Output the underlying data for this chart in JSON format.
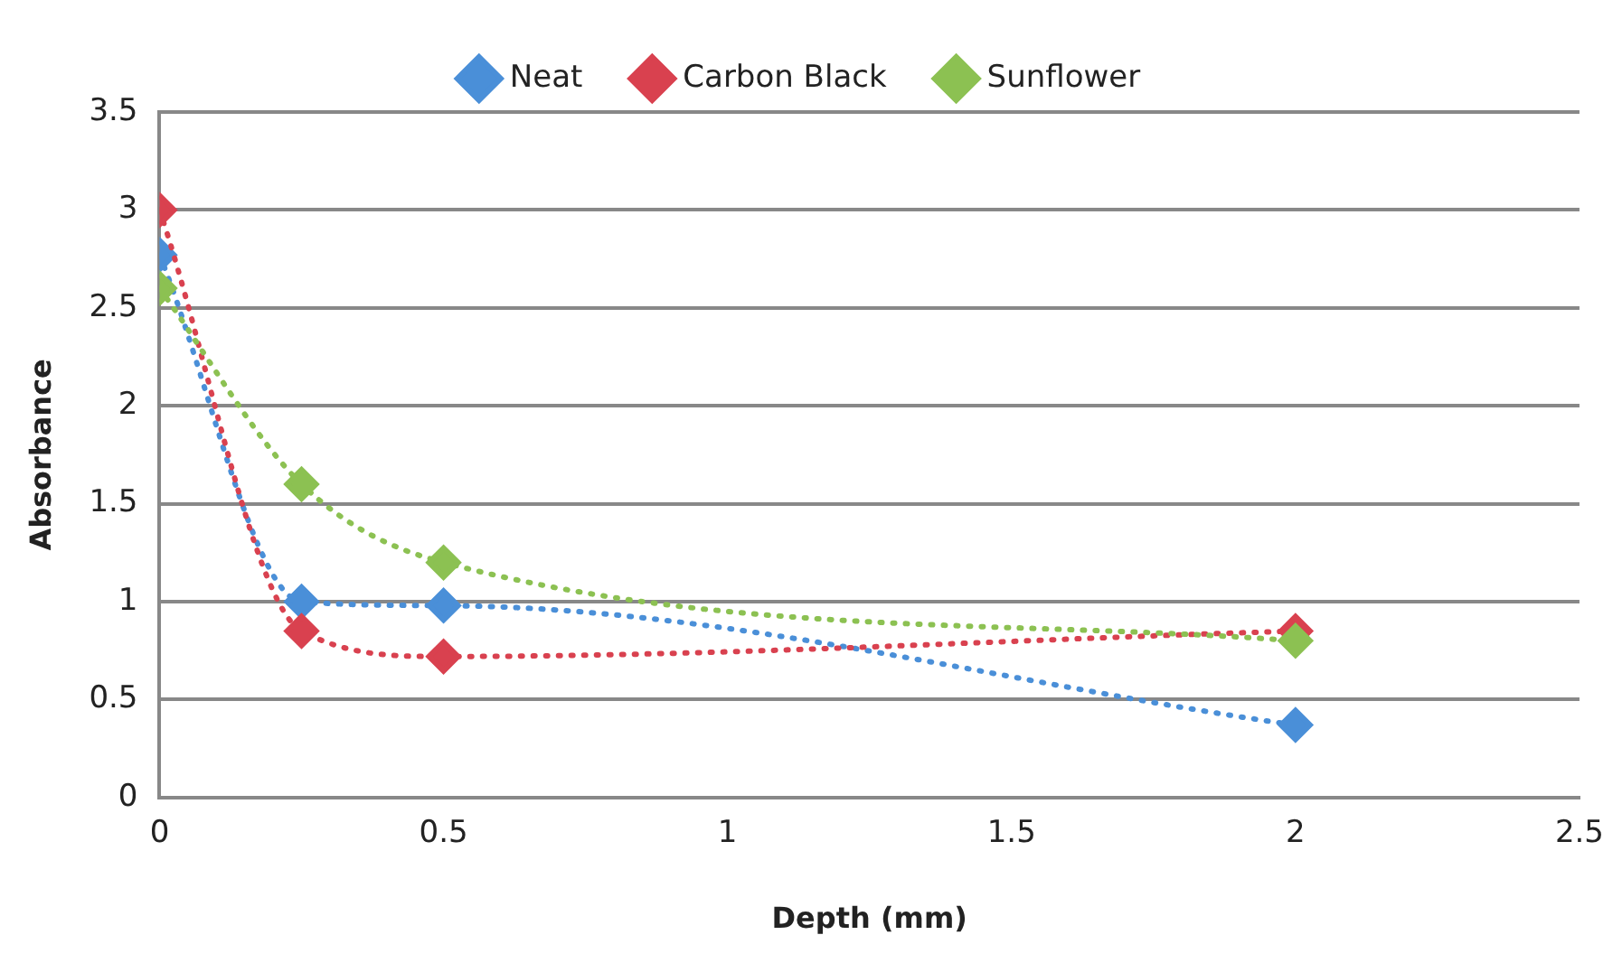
{
  "chart_data": {
    "type": "line",
    "xlabel": "Depth (mm)",
    "ylabel": "Absorbance",
    "x": [
      0,
      0.25,
      0.5,
      2
    ],
    "series": [
      {
        "name": "Neat",
        "color": "#4a8fd8",
        "values": [
          2.77,
          1.0,
          0.98,
          0.37
        ]
      },
      {
        "name": "Carbon Black",
        "color": "#d9414f",
        "values": [
          3.0,
          0.85,
          0.72,
          0.85
        ]
      },
      {
        "name": "Sunflower",
        "color": "#8cc152",
        "values": [
          2.6,
          1.6,
          1.2,
          0.8
        ]
      }
    ],
    "xlim": [
      0,
      2.5
    ],
    "xticks": [
      0,
      0.5,
      1,
      1.5,
      2,
      2.5
    ],
    "ylim": [
      0,
      3.5
    ],
    "yticks": [
      0,
      0.5,
      1,
      1.5,
      2,
      2.5,
      3,
      3.5
    ],
    "grid": "y",
    "legend": "top",
    "marker": "diamond",
    "line_style": "dotted"
  }
}
